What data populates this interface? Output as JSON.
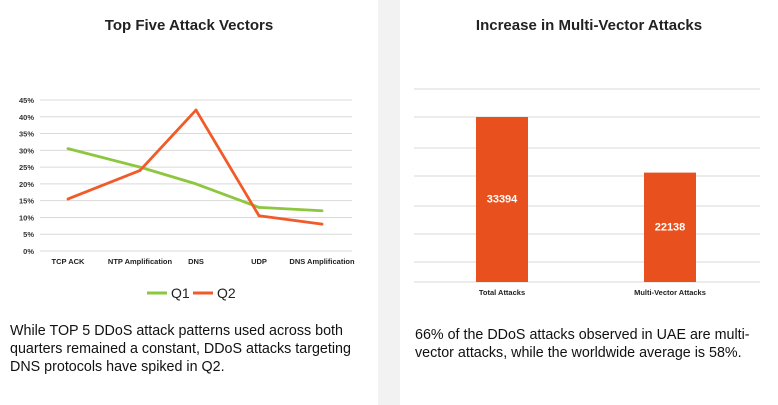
{
  "colors": {
    "q1": "#8dc63f",
    "q2": "#f15a29",
    "bar": "#e8501e",
    "grid": "#d9d9d9"
  },
  "left": {
    "title": "Top Five Attack Vectors",
    "caption": "While TOP 5 DDoS attack patterns used across both quarters remained a constant, DDoS attacks targeting DNS protocols have spiked in Q2."
  },
  "right": {
    "title": "Increase in Multi-Vector Attacks",
    "caption": "66% of the DDoS attacks observed in UAE are multi-vector attacks, while the worldwide average is 58%."
  },
  "chart_data": [
    {
      "type": "line",
      "title": "Top Five Attack Vectors",
      "categories": [
        "TCP ACK",
        "NTP Amplification",
        "DNS",
        "UDP",
        "DNS Amplification"
      ],
      "series": [
        {
          "name": "Q1",
          "values": [
            30.5,
            25,
            20,
            13,
            12
          ]
        },
        {
          "name": "Q2",
          "values": [
            15.5,
            24,
            42,
            10.5,
            8
          ]
        }
      ],
      "yticks": [
        "0%",
        "5%",
        "10%",
        "15%",
        "20%",
        "25%",
        "30%",
        "35%",
        "40%",
        "45%"
      ],
      "ylim": [
        0,
        45
      ],
      "legend": "bottom",
      "grid": true
    },
    {
      "type": "bar",
      "title": "Increase in Multi-Vector Attacks",
      "categories": [
        "Total Attacks",
        "Multi-Vector Attacks"
      ],
      "values": [
        33394,
        22138
      ],
      "value_labels": [
        "33394",
        "22138"
      ],
      "grid": true
    }
  ]
}
